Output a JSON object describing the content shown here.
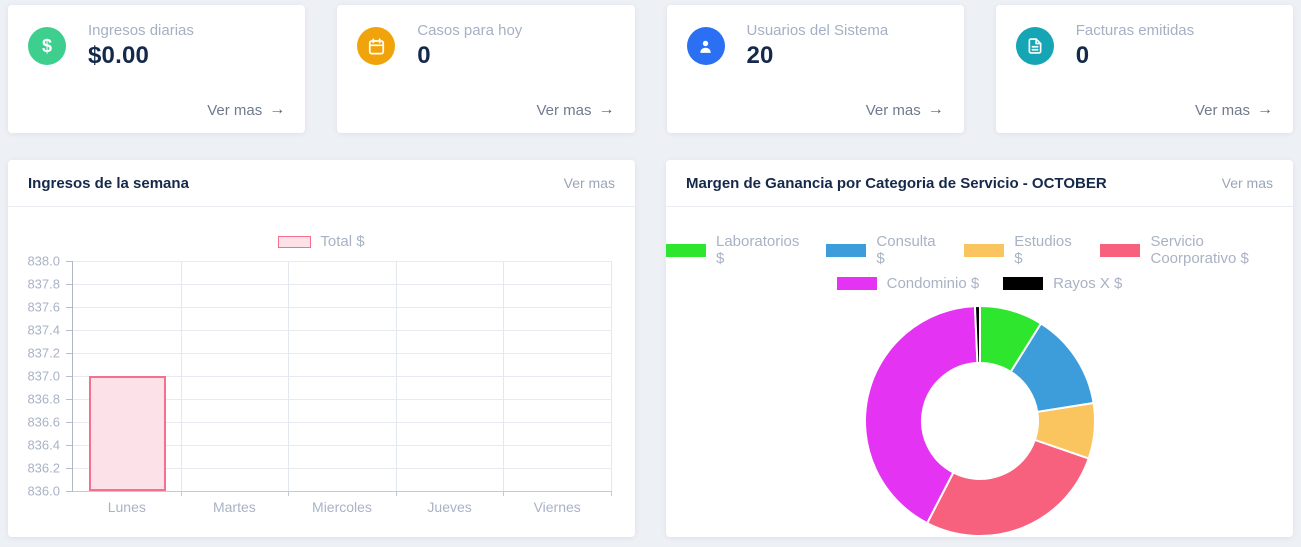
{
  "page": {
    "background": "#edf0f5"
  },
  "cards": [
    {
      "label": "Ingresos diarias",
      "value": "$0.00",
      "link": "Ver mas",
      "arrow": "→",
      "icon": "dollar-icon",
      "icon_glyph": "$",
      "icon_bg": "#3ecf8e"
    },
    {
      "label": "Casos para hoy",
      "value": "0",
      "link": "Ver mas",
      "arrow": "→",
      "icon": "calendar-icon",
      "icon_bg": "#f0a30a"
    },
    {
      "label": "Usuarios del Sistema",
      "value": "20",
      "link": "Ver mas",
      "arrow": "→",
      "icon": "user-icon",
      "icon_bg": "#2b6ff2"
    },
    {
      "label": "Facturas emitidas",
      "value": "0",
      "link": "Ver mas",
      "arrow": "→",
      "icon": "file-invoice-icon",
      "icon_bg": "#16a5b4"
    }
  ],
  "panels": {
    "week_income": {
      "title": "Ingresos de la semana",
      "link": "Ver mas"
    },
    "margin": {
      "title": "Margen de Ganancia por Categoria de Servicio - OCTOBER",
      "link": "Ver mas"
    }
  },
  "chart_data": [
    {
      "type": "bar",
      "title": "Ingresos de la semana",
      "categories": [
        "Lunes",
        "Martes",
        "Miercoles",
        "Jueves",
        "Viernes"
      ],
      "series": [
        {
          "name": "Total $",
          "values": [
            837.0,
            null,
            null,
            null,
            null
          ]
        }
      ],
      "ylim": [
        836.0,
        838.0
      ],
      "ytick_step": 0.2,
      "yticks": [
        "838.0",
        "837.8",
        "837.6",
        "837.4",
        "837.2",
        "837.0",
        "836.8",
        "836.6",
        "836.4",
        "836.2",
        "836.0"
      ],
      "grid": true,
      "legend_position": "top",
      "bar_fill": "#fce1e9",
      "bar_border": "#f4708f"
    },
    {
      "type": "pie",
      "donut": true,
      "title": "Margen de Ganancia por Categoria de Servicio - OCTOBER",
      "legend_position": "top",
      "legend_rows": [
        4,
        2
      ],
      "slices": [
        {
          "label": "Laboratorios $",
          "percent": 8.9,
          "color": "#2ee62e"
        },
        {
          "label": "Consulta $",
          "percent": 13.6,
          "color": "#3d9ddb"
        },
        {
          "label": "Estudios $",
          "percent": 7.8,
          "color": "#fac55e"
        },
        {
          "label": "Servicio Coorporativo $",
          "percent": 27.3,
          "color": "#f8617d"
        },
        {
          "label": "Condominio $",
          "percent": 41.7,
          "color": "#e433f2"
        },
        {
          "label": "Rayos X $",
          "percent": 0.7,
          "color": "#000000"
        }
      ]
    }
  ]
}
